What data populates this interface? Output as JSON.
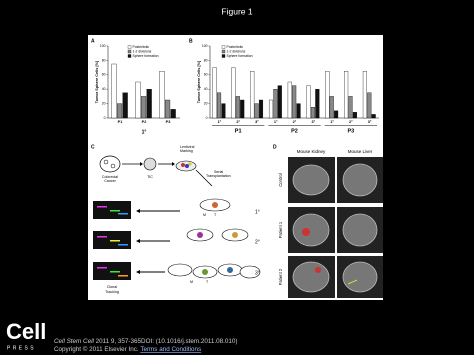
{
  "header": {
    "title": "Figure 1"
  },
  "figure": {
    "panel_a": {
      "label": "A",
      "y_label": "Tumor Sphere Cells [%]",
      "ylim": [
        0,
        100
      ],
      "yticks": [
        0,
        20,
        40,
        60,
        80,
        100
      ],
      "categories": [
        "P1",
        "P2",
        "P3"
      ],
      "group_label": "1°",
      "series": [
        {
          "name": "Postmitotic",
          "color": "#ffffff",
          "values": [
            75,
            50,
            65
          ]
        },
        {
          "name": "1-2 divisions",
          "color": "#888888",
          "values": [
            20,
            30,
            25
          ]
        },
        {
          "name": "Sphere formation",
          "color": "#111111",
          "values": [
            35,
            40,
            12
          ]
        }
      ]
    },
    "panel_b": {
      "label": "B",
      "y_label": "Tumor Sphere Cells [%]",
      "ylim": [
        0,
        100
      ],
      "yticks": [
        0,
        20,
        40,
        60,
        80,
        100
      ],
      "categories": [
        "1°",
        "2°",
        "3°",
        "1°",
        "2°",
        "3°",
        "1°",
        "2°",
        "3°"
      ],
      "groups": [
        "P1",
        "P2",
        "P3"
      ],
      "series": [
        {
          "name": "Postmitotic",
          "color": "#ffffff",
          "values": [
            70,
            70,
            65,
            25,
            50,
            45,
            65,
            65,
            65
          ]
        },
        {
          "name": "1-2 divisions",
          "color": "#888888",
          "values": [
            35,
            30,
            20,
            40,
            45,
            15,
            30,
            30,
            35
          ]
        },
        {
          "name": "Sphere formation",
          "color": "#111111",
          "values": [
            20,
            25,
            25,
            45,
            20,
            40,
            10,
            8,
            5
          ]
        }
      ]
    },
    "panel_c": {
      "label": "C",
      "marking": [
        "Lentiviral",
        "Marking"
      ],
      "cancer": [
        "Colorectal",
        "Cancer"
      ],
      "tic": "TIC",
      "transplant": [
        "Serial",
        "Transplantation"
      ],
      "generations": [
        "1°",
        "2°",
        "3°"
      ],
      "m": "M",
      "t": "T",
      "tracking": [
        "Clonal",
        "Tracking"
      ]
    },
    "panel_d": {
      "label": "D",
      "columns": [
        "Mouse Kidney",
        "Mouse Liver"
      ],
      "rows": [
        "Control",
        "Patient 1",
        "Patient 2"
      ]
    }
  },
  "footer": {
    "logo": "Cell",
    "logo_sub": "PRESS",
    "journal": "Cell Stem Cell",
    "citation": " 2011 9, 357-365DOI: (10.1016/j.stem.2011.08.010)",
    "copyright": "Copyright © 2011 Elsevier Inc. ",
    "link": "Terms and Conditions"
  }
}
